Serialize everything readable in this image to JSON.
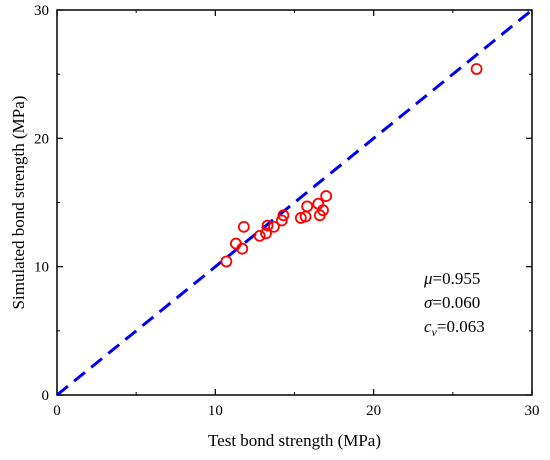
{
  "chart_data": {
    "type": "scatter",
    "xlabel": "Test bond strength (MPa)",
    "ylabel": "Simulated bond strength (MPa)",
    "xlim": [
      0,
      30
    ],
    "ylim": [
      0,
      30
    ],
    "xticks": [
      0,
      10,
      20,
      30
    ],
    "yticks": [
      0,
      10,
      20,
      30
    ],
    "grid": false,
    "marker": "open-circle",
    "marker_color": "#ff0000",
    "reference_line": {
      "from": [
        0,
        0
      ],
      "to": [
        30,
        30
      ],
      "style": "dashed",
      "color": "#0000ee"
    },
    "points": [
      {
        "x": 10.7,
        "y": 10.4
      },
      {
        "x": 11.3,
        "y": 11.8
      },
      {
        "x": 11.7,
        "y": 11.4
      },
      {
        "x": 11.8,
        "y": 13.1
      },
      {
        "x": 12.8,
        "y": 12.4
      },
      {
        "x": 13.2,
        "y": 12.6
      },
      {
        "x": 13.3,
        "y": 13.2
      },
      {
        "x": 13.7,
        "y": 13.1
      },
      {
        "x": 14.2,
        "y": 13.6
      },
      {
        "x": 14.3,
        "y": 14.0
      },
      {
        "x": 15.4,
        "y": 13.8
      },
      {
        "x": 15.7,
        "y": 13.9
      },
      {
        "x": 15.8,
        "y": 14.7
      },
      {
        "x": 16.5,
        "y": 14.9
      },
      {
        "x": 16.6,
        "y": 14.0
      },
      {
        "x": 16.8,
        "y": 14.4
      },
      {
        "x": 17.0,
        "y": 15.5
      },
      {
        "x": 26.5,
        "y": 25.4
      }
    ],
    "annotations": {
      "mu_symbol": "μ",
      "mu_value": "=0.955",
      "sigma_symbol": "σ",
      "sigma_value": "=0.060",
      "cv_symbol": "c",
      "cv_subscript": "v",
      "cv_value": "=0.063"
    }
  }
}
